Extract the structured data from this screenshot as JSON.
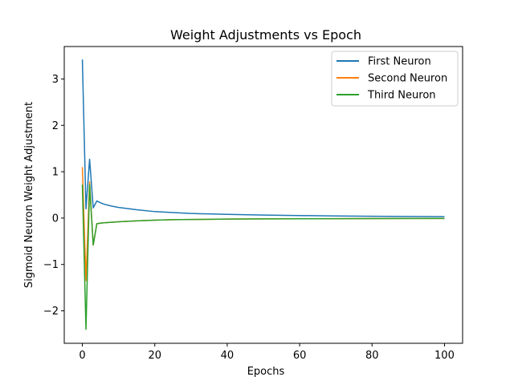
{
  "chart_data": {
    "type": "line",
    "title": "Weight Adjustments vs Epoch",
    "xlabel": "Epochs",
    "ylabel": "Sigmoid Neuron Weight Adjustment",
    "xlim": [
      -5,
      105
    ],
    "ylim": [
      -2.7,
      3.7
    ],
    "xticks": [
      0,
      20,
      40,
      60,
      80,
      100
    ],
    "yticks": [
      -2,
      -1,
      0,
      1,
      2,
      3
    ],
    "grid": false,
    "legend": "top-right",
    "series": [
      {
        "name": "First Neuron",
        "color": "#1f77b4",
        "x": [
          0,
          1,
          2,
          3,
          4,
          5,
          6,
          8,
          10,
          12,
          15,
          20,
          25,
          30,
          40,
          50,
          60,
          70,
          80,
          90,
          100
        ],
        "y": [
          3.42,
          0.2,
          1.27,
          0.22,
          0.37,
          0.33,
          0.3,
          0.26,
          0.23,
          0.21,
          0.18,
          0.14,
          0.12,
          0.1,
          0.08,
          0.065,
          0.055,
          0.047,
          0.04,
          0.035,
          0.031
        ]
      },
      {
        "name": "Second Neuron",
        "color": "#ff7f0e",
        "x": [
          0,
          1,
          2,
          3,
          4,
          5,
          6,
          8,
          10,
          12,
          15,
          20,
          25,
          30,
          40,
          50,
          60,
          70,
          80,
          90,
          100
        ],
        "y": [
          1.1,
          -1.35,
          0.78,
          -0.58,
          -0.12,
          -0.11,
          -0.1,
          -0.09,
          -0.08,
          -0.07,
          -0.06,
          -0.045,
          -0.035,
          -0.03,
          -0.022,
          -0.017,
          -0.014,
          -0.012,
          -0.01,
          -0.009,
          -0.008
        ]
      },
      {
        "name": "Third Neuron",
        "color": "#2ca02c",
        "x": [
          0,
          1,
          2,
          3,
          4,
          5,
          6,
          8,
          10,
          12,
          15,
          20,
          25,
          30,
          40,
          50,
          60,
          70,
          80,
          90,
          100
        ],
        "y": [
          0.72,
          -2.4,
          0.72,
          -0.58,
          -0.12,
          -0.11,
          -0.1,
          -0.09,
          -0.08,
          -0.07,
          -0.06,
          -0.045,
          -0.035,
          -0.03,
          -0.022,
          -0.017,
          -0.014,
          -0.012,
          -0.01,
          -0.009,
          -0.008
        ]
      }
    ]
  }
}
